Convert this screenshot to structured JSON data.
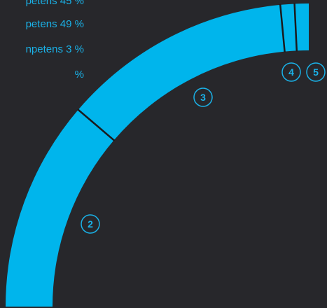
{
  "chart_data": {
    "type": "pie",
    "title": "",
    "colors": {
      "slice": "#00b5ec",
      "separator": "#1a1a1d",
      "label": "#1ab2e8",
      "background": "#27272b"
    },
    "slices": [
      {
        "label": "2",
        "percent": 45
      },
      {
        "label": "3",
        "percent": 49
      },
      {
        "label": "4",
        "percent": 3
      },
      {
        "label": "5",
        "percent": 3
      }
    ],
    "legend": [
      "petens 45 %",
      "petens 49 %",
      "npetens 3 %",
      "%"
    ]
  }
}
